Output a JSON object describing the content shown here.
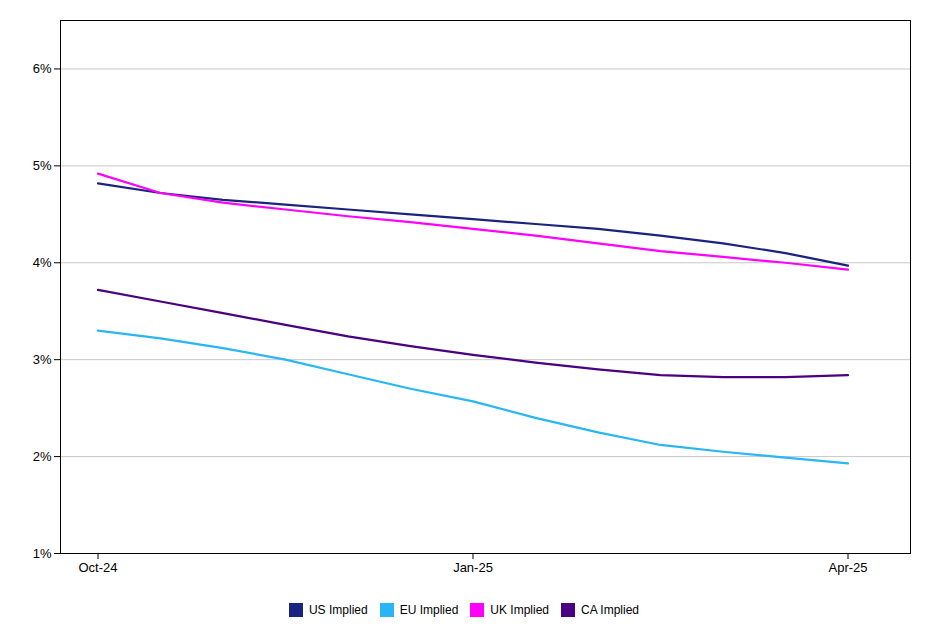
{
  "chart_data": {
    "type": "line",
    "x": [
      0,
      0.5,
      1.0,
      1.5,
      2.0,
      2.5,
      3.0,
      3.5,
      4.0,
      4.5,
      5.0,
      5.5,
      6.0
    ],
    "series": [
      {
        "name": "US Implied",
        "color": "#1a237e",
        "values": [
          4.82,
          4.72,
          4.65,
          4.6,
          4.55,
          4.5,
          4.45,
          4.4,
          4.35,
          4.28,
          4.2,
          4.1,
          3.97
        ]
      },
      {
        "name": "EU Implied",
        "color": "#29b6f6",
        "values": [
          3.3,
          3.22,
          3.12,
          3.0,
          2.85,
          2.7,
          2.57,
          2.4,
          2.25,
          2.12,
          2.05,
          1.99,
          1.93
        ]
      },
      {
        "name": "UK Implied",
        "color": "#ff00ff",
        "values": [
          4.92,
          4.72,
          4.62,
          4.55,
          4.48,
          4.42,
          4.35,
          4.28,
          4.2,
          4.12,
          4.06,
          4.0,
          3.93
        ]
      },
      {
        "name": "CA Implied",
        "color": "#4a0080",
        "values": [
          3.72,
          3.6,
          3.48,
          3.36,
          3.24,
          3.14,
          3.05,
          2.97,
          2.9,
          2.84,
          2.82,
          2.82,
          2.84
        ]
      }
    ],
    "xlim": [
      -0.3,
      6.5
    ],
    "xticks": [
      {
        "value": 0,
        "label": "Oct-24"
      },
      {
        "value": 3,
        "label": "Jan-25"
      },
      {
        "value": 6,
        "label": "Apr-25"
      }
    ],
    "ylim": [
      1.0,
      6.5
    ],
    "yticks": [
      {
        "value": 1.0,
        "label": "1%"
      },
      {
        "value": 2.0,
        "label": "2%"
      },
      {
        "value": 3.0,
        "label": "3%"
      },
      {
        "value": 4.0,
        "label": "4%"
      },
      {
        "value": 5.0,
        "label": "5%"
      },
      {
        "value": 6.0,
        "label": "6%"
      }
    ],
    "grid": "y",
    "legend": "bottom"
  }
}
